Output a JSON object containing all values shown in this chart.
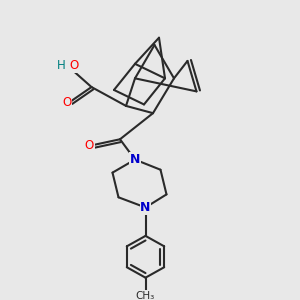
{
  "bg_color": "#e8e8e8",
  "bond_color": "#2a2a2a",
  "atom_colors": {
    "O": "#ff0000",
    "N": "#0000cc",
    "H": "#008080",
    "C": "#2a2a2a"
  },
  "figsize": [
    3.0,
    3.0
  ],
  "dpi": 100
}
